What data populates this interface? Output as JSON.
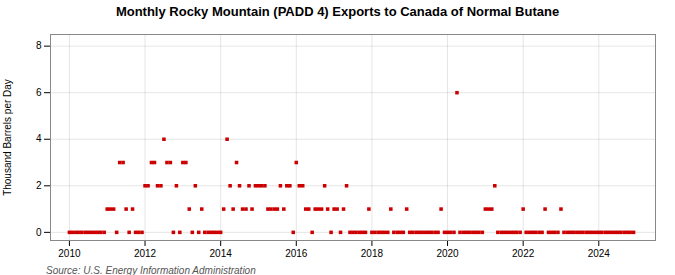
{
  "chart_data": {
    "type": "scatter",
    "title": "Monthly Rocky Mountain (PADD 4) Exports to Canada of Normal Butane",
    "ylabel": "Thousand Barrels per Day",
    "source": "Source: U.S. Energy Information Administration",
    "color": "#cc0000",
    "marker": "square",
    "grid": true,
    "xlim": [
      2009.5,
      2025.5
    ],
    "xticks": [
      2010,
      2012,
      2014,
      2016,
      2018,
      2020,
      2022,
      2024
    ],
    "ylim": [
      -0.35,
      8.5
    ],
    "yticks": [
      0,
      2,
      4,
      6,
      8
    ],
    "x": [
      2010.0,
      2010.08,
      2010.17,
      2010.25,
      2010.33,
      2010.42,
      2010.5,
      2010.58,
      2010.67,
      2010.75,
      2010.83,
      2010.92,
      2011.0,
      2011.08,
      2011.17,
      2011.25,
      2011.33,
      2011.42,
      2011.5,
      2011.58,
      2011.67,
      2011.75,
      2011.83,
      2011.92,
      2012.0,
      2012.08,
      2012.17,
      2012.25,
      2012.33,
      2012.42,
      2012.5,
      2012.58,
      2012.67,
      2012.75,
      2012.83,
      2012.92,
      2013.0,
      2013.08,
      2013.17,
      2013.25,
      2013.33,
      2013.42,
      2013.5,
      2013.58,
      2013.67,
      2013.75,
      2013.83,
      2013.92,
      2014.0,
      2014.08,
      2014.17,
      2014.25,
      2014.33,
      2014.42,
      2014.5,
      2014.58,
      2014.67,
      2014.75,
      2014.83,
      2014.92,
      2015.0,
      2015.08,
      2015.17,
      2015.25,
      2015.33,
      2015.42,
      2015.5,
      2015.58,
      2015.67,
      2015.75,
      2015.83,
      2015.92,
      2016.0,
      2016.08,
      2016.17,
      2016.25,
      2016.33,
      2016.42,
      2016.5,
      2016.58,
      2016.67,
      2016.75,
      2016.83,
      2016.92,
      2017.0,
      2017.08,
      2017.17,
      2017.25,
      2017.33,
      2017.42,
      2017.5,
      2017.58,
      2017.67,
      2017.75,
      2017.83,
      2017.92,
      2018.0,
      2018.08,
      2018.17,
      2018.25,
      2018.33,
      2018.42,
      2018.5,
      2018.58,
      2018.67,
      2018.75,
      2018.83,
      2018.92,
      2019.0,
      2019.08,
      2019.17,
      2019.25,
      2019.33,
      2019.42,
      2019.5,
      2019.58,
      2019.67,
      2019.75,
      2019.83,
      2019.92,
      2020.0,
      2020.08,
      2020.17,
      2020.25,
      2020.33,
      2020.42,
      2020.5,
      2020.58,
      2020.67,
      2020.75,
      2020.83,
      2020.92,
      2021.0,
      2021.08,
      2021.17,
      2021.25,
      2021.33,
      2021.42,
      2021.5,
      2021.58,
      2021.67,
      2021.75,
      2021.83,
      2021.92,
      2022.0,
      2022.08,
      2022.17,
      2022.25,
      2022.33,
      2022.42,
      2022.5,
      2022.58,
      2022.67,
      2022.75,
      2022.83,
      2022.92,
      2023.0,
      2023.08,
      2023.17,
      2023.25,
      2023.33,
      2023.42,
      2023.5,
      2023.58,
      2023.67,
      2023.75,
      2023.83,
      2023.92,
      2024.0,
      2024.08,
      2024.17,
      2024.25,
      2024.33,
      2024.42,
      2024.5,
      2024.58,
      2024.67,
      2024.75,
      2024.83,
      2024.92
    ],
    "values": [
      0,
      0,
      0,
      0,
      0,
      0,
      0,
      0,
      0,
      0,
      0,
      0,
      1,
      1,
      1,
      0,
      3,
      3,
      1,
      0,
      1,
      0,
      0,
      0,
      2,
      2,
      3,
      3,
      2,
      2,
      4,
      3,
      3,
      0,
      2,
      0,
      3,
      3,
      1,
      0,
      2,
      0,
      1,
      0,
      0,
      0,
      0,
      0,
      0,
      1,
      4,
      2,
      1,
      3,
      2,
      1,
      1,
      2,
      1,
      2,
      2,
      2,
      2,
      1,
      1,
      1,
      1,
      2,
      1,
      2,
      2,
      0,
      3,
      2,
      2,
      1,
      1,
      0,
      1,
      1,
      1,
      2,
      1,
      0,
      1,
      1,
      0,
      1,
      2,
      0,
      0,
      0,
      0,
      0,
      0,
      1,
      0,
      0,
      0,
      0,
      0,
      0,
      1,
      0,
      0,
      0,
      0,
      1,
      0,
      0,
      0,
      0,
      0,
      0,
      0,
      0,
      0,
      0,
      1,
      0,
      0,
      0,
      0,
      6,
      0,
      0,
      0,
      0,
      0,
      0,
      0,
      0,
      1,
      1,
      1,
      2,
      0,
      0,
      0,
      0,
      0,
      0,
      0,
      0,
      1,
      0,
      0,
      0,
      0,
      0,
      0,
      1,
      0,
      0,
      0,
      0,
      1,
      0,
      0,
      0,
      0,
      0,
      0,
      0,
      0,
      0,
      0,
      0,
      0,
      0,
      0,
      0,
      0,
      0,
      0,
      0,
      0,
      0,
      0,
      0
    ]
  }
}
